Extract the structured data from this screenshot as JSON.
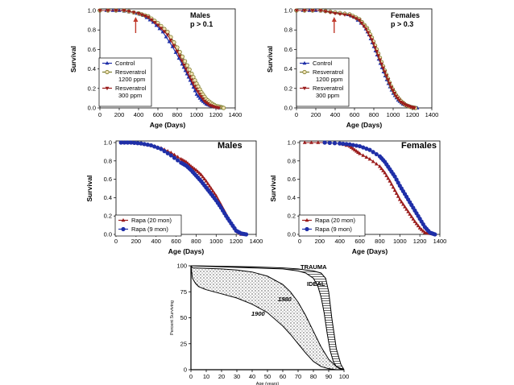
{
  "colors": {
    "control": "#1f2fa8",
    "resv_1200": "#7a7a2a",
    "resv_300": "#9b1c1c",
    "rapa20": "#9b1c1c",
    "rapa9": "#1f2fa8",
    "arrow": "#c0392b"
  },
  "chart_data": [
    {
      "type": "line",
      "panel": "top-left",
      "title": "Males",
      "annotation": "p > 0.1",
      "xlabel": "Age (Days)",
      "ylabel": "Survival",
      "xlim": [
        0,
        1400
      ],
      "ylim": [
        0,
        1.0
      ],
      "xticks": [
        0,
        200,
        400,
        600,
        800,
        1000,
        1200,
        1400
      ],
      "yticks": [
        "0.0",
        "0.2",
        "0.4",
        "0.6",
        "0.8",
        "1.0"
      ],
      "arrow_x": 370,
      "legend": [
        [
          "Control",
          ""
        ],
        [
          "Resveratrol",
          "1200 ppm"
        ],
        [
          "Resveratrol",
          "300 ppm"
        ]
      ],
      "series": [
        {
          "name": "Control",
          "color_key": "control",
          "x": [
            0,
            200,
            350,
            450,
            550,
            650,
            750,
            850,
            900,
            950,
            1000,
            1050,
            1100,
            1150,
            1200,
            1250
          ],
          "y": [
            1.0,
            1.0,
            0.98,
            0.95,
            0.88,
            0.78,
            0.63,
            0.45,
            0.35,
            0.25,
            0.14,
            0.08,
            0.04,
            0.02,
            0.01,
            0.0
          ]
        },
        {
          "name": "Resveratrol 1200 ppm",
          "color_key": "resv_1200",
          "x": [
            0,
            250,
            400,
            500,
            600,
            700,
            800,
            880,
            950,
            1000,
            1050,
            1100,
            1150,
            1200,
            1250,
            1280
          ],
          "y": [
            1.0,
            1.0,
            0.97,
            0.94,
            0.87,
            0.78,
            0.62,
            0.48,
            0.35,
            0.25,
            0.16,
            0.09,
            0.05,
            0.02,
            0.01,
            0.0
          ]
        },
        {
          "name": "Resveratrol 300 ppm",
          "color_key": "resv_300",
          "x": [
            0,
            250,
            400,
            500,
            600,
            700,
            800,
            870,
            930,
            980,
            1030,
            1080,
            1130,
            1180,
            1230
          ],
          "y": [
            1.0,
            1.0,
            0.97,
            0.93,
            0.85,
            0.75,
            0.58,
            0.44,
            0.32,
            0.22,
            0.14,
            0.07,
            0.03,
            0.01,
            0.0
          ]
        }
      ]
    },
    {
      "type": "line",
      "panel": "top-right",
      "title": "Females",
      "annotation": "p > 0.3",
      "xlabel": "Age (Days)",
      "ylabel": "Survival",
      "xlim": [
        0,
        1400
      ],
      "ylim": [
        0,
        1.0
      ],
      "xticks": [
        0,
        200,
        400,
        600,
        800,
        1000,
        1200,
        1400
      ],
      "yticks": [
        "0.0",
        "0.2",
        "0.4",
        "0.6",
        "0.8",
        "1.0"
      ],
      "arrow_x": 390,
      "legend": [
        [
          "Control",
          ""
        ],
        [
          "Resveratrol",
          "1200 ppm"
        ],
        [
          "Resveratrol",
          "300 ppm"
        ]
      ],
      "series": [
        {
          "name": "Control",
          "color_key": "control",
          "x": [
            0,
            200,
            350,
            500,
            600,
            700,
            750,
            800,
            850,
            900,
            950,
            1000,
            1050,
            1100,
            1150,
            1200,
            1250
          ],
          "y": [
            1.0,
            1.0,
            0.99,
            0.97,
            0.93,
            0.84,
            0.75,
            0.63,
            0.5,
            0.37,
            0.25,
            0.15,
            0.08,
            0.04,
            0.02,
            0.01,
            0.0
          ]
        },
        {
          "name": "Resveratrol 1200 ppm",
          "color_key": "resv_1200",
          "x": [
            0,
            250,
            400,
            550,
            650,
            730,
            780,
            830,
            880,
            930,
            980,
            1030,
            1080,
            1130,
            1180,
            1230
          ],
          "y": [
            1.0,
            1.0,
            0.98,
            0.96,
            0.91,
            0.82,
            0.72,
            0.6,
            0.47,
            0.34,
            0.22,
            0.13,
            0.07,
            0.03,
            0.01,
            0.0
          ]
        },
        {
          "name": "Resveratrol 300 ppm",
          "color_key": "resv_300",
          "x": [
            0,
            250,
            400,
            550,
            650,
            720,
            780,
            830,
            880,
            930,
            980,
            1030,
            1080,
            1130,
            1180,
            1220
          ],
          "y": [
            1.0,
            1.0,
            0.97,
            0.95,
            0.9,
            0.81,
            0.7,
            0.58,
            0.45,
            0.33,
            0.21,
            0.12,
            0.06,
            0.03,
            0.01,
            0.0
          ]
        }
      ]
    },
    {
      "type": "line",
      "panel": "middle-left",
      "title": "Males",
      "xlabel": "Age (Days)",
      "ylabel": "Survival",
      "xlim": [
        0,
        1400
      ],
      "ylim": [
        0,
        1.0
      ],
      "xticks": [
        0,
        200,
        400,
        600,
        800,
        1000,
        1200,
        1400
      ],
      "yticks": [
        "0.0",
        "0.2",
        "0.4",
        "0.6",
        "0.8",
        "1.0"
      ],
      "legend": [
        [
          "Rapa (20 mon)",
          ""
        ],
        [
          "Rapa (9 mon)",
          ""
        ]
      ],
      "series": [
        {
          "name": "Rapa (20 mon)",
          "color_key": "rapa20",
          "x": [
            50,
            150,
            250,
            350,
            450,
            550,
            650,
            700,
            750,
            800,
            850,
            900,
            950,
            1000,
            1050,
            1100,
            1150,
            1200,
            1250
          ],
          "y": [
            1.0,
            1.0,
            0.99,
            0.97,
            0.94,
            0.89,
            0.82,
            0.79,
            0.74,
            0.7,
            0.65,
            0.58,
            0.5,
            0.42,
            0.32,
            0.22,
            0.12,
            0.04,
            0.0
          ]
        },
        {
          "name": "Rapa (9 mon)",
          "color_key": "rapa9",
          "x": [
            50,
            150,
            250,
            350,
            450,
            550,
            650,
            700,
            750,
            800,
            850,
            900,
            950,
            1000,
            1050,
            1100,
            1150,
            1200,
            1250,
            1300
          ],
          "y": [
            1.0,
            1.0,
            0.99,
            0.97,
            0.93,
            0.86,
            0.78,
            0.75,
            0.7,
            0.64,
            0.58,
            0.51,
            0.44,
            0.37,
            0.29,
            0.2,
            0.12,
            0.04,
            0.01,
            0.0
          ]
        }
      ]
    },
    {
      "type": "line",
      "panel": "middle-right",
      "title": "Females",
      "xlabel": "Age (Days)",
      "ylabel": "Survival",
      "xlim": [
        0,
        1400
      ],
      "ylim": [
        0,
        1.0
      ],
      "xticks": [
        0,
        200,
        400,
        600,
        800,
        1000,
        1200,
        1400
      ],
      "yticks": [
        "0.0",
        "0.2",
        "0.4",
        "0.6",
        "0.8",
        "1.0"
      ],
      "legend": [
        [
          "Rapa (20 mon)",
          ""
        ],
        [
          "Rapa (9 mon)",
          ""
        ]
      ],
      "series": [
        {
          "name": "Rapa (20 mon)",
          "color_key": "rapa20",
          "x": [
            50,
            250,
            400,
            500,
            550,
            600,
            700,
            800,
            850,
            900,
            950,
            1000,
            1050,
            1100,
            1150,
            1200,
            1250,
            1300,
            1350
          ],
          "y": [
            1.0,
            1.0,
            0.99,
            0.96,
            0.92,
            0.88,
            0.82,
            0.74,
            0.67,
            0.58,
            0.48,
            0.38,
            0.3,
            0.22,
            0.14,
            0.07,
            0.02,
            0.01,
            0.0
          ]
        },
        {
          "name": "Rapa (9 mon)",
          "color_key": "rapa9",
          "x": [
            250,
            400,
            500,
            600,
            700,
            800,
            850,
            900,
            950,
            1000,
            1050,
            1100,
            1150,
            1200,
            1250,
            1300,
            1350
          ],
          "y": [
            1.0,
            0.99,
            0.98,
            0.96,
            0.92,
            0.85,
            0.79,
            0.71,
            0.63,
            0.53,
            0.44,
            0.35,
            0.26,
            0.17,
            0.08,
            0.02,
            0.0
          ]
        }
      ]
    },
    {
      "type": "area",
      "panel": "bottom",
      "xlabel": "Age (years)",
      "ylabel": "Percent Surviving",
      "xlim": [
        0,
        100
      ],
      "ylim": [
        0,
        100
      ],
      "xticks": [
        0,
        10,
        20,
        30,
        40,
        50,
        60,
        70,
        80,
        90,
        100
      ],
      "yticks": [
        0,
        25,
        50,
        75,
        100
      ],
      "curve_labels": [
        "TRAUMA",
        "IDEAL",
        "1980",
        "1900"
      ],
      "series": [
        {
          "name": "TRAUMA",
          "x": [
            0,
            20,
            40,
            60,
            70,
            75,
            80,
            85,
            88,
            90,
            92,
            95,
            98,
            100
          ],
          "y": [
            100,
            99.5,
            99,
            98,
            97,
            96,
            95,
            93,
            88,
            75,
            50,
            20,
            5,
            0
          ]
        },
        {
          "name": "IDEAL",
          "x": [
            0,
            20,
            40,
            60,
            70,
            75,
            80,
            83,
            85,
            87,
            89,
            91,
            93,
            95,
            97,
            100
          ],
          "y": [
            100,
            99,
            98,
            97,
            95,
            93,
            88,
            80,
            70,
            55,
            35,
            18,
            8,
            3,
            1,
            0
          ]
        },
        {
          "name": "1980",
          "x": [
            0,
            1,
            10,
            20,
            30,
            40,
            50,
            60,
            65,
            70,
            75,
            80,
            85,
            90,
            95,
            100
          ],
          "y": [
            100,
            98,
            97.5,
            97,
            96,
            94,
            90,
            82,
            75,
            65,
            52,
            37,
            22,
            10,
            3,
            0
          ]
        },
        {
          "name": "1900",
          "x": [
            0,
            1,
            3,
            5,
            10,
            20,
            30,
            40,
            50,
            60,
            65,
            70,
            75,
            80,
            85,
            90,
            95,
            100
          ],
          "y": [
            100,
            88,
            83,
            80,
            77,
            73,
            69,
            63,
            55,
            42,
            34,
            25,
            16,
            8,
            3,
            1,
            0,
            0
          ]
        }
      ]
    }
  ]
}
